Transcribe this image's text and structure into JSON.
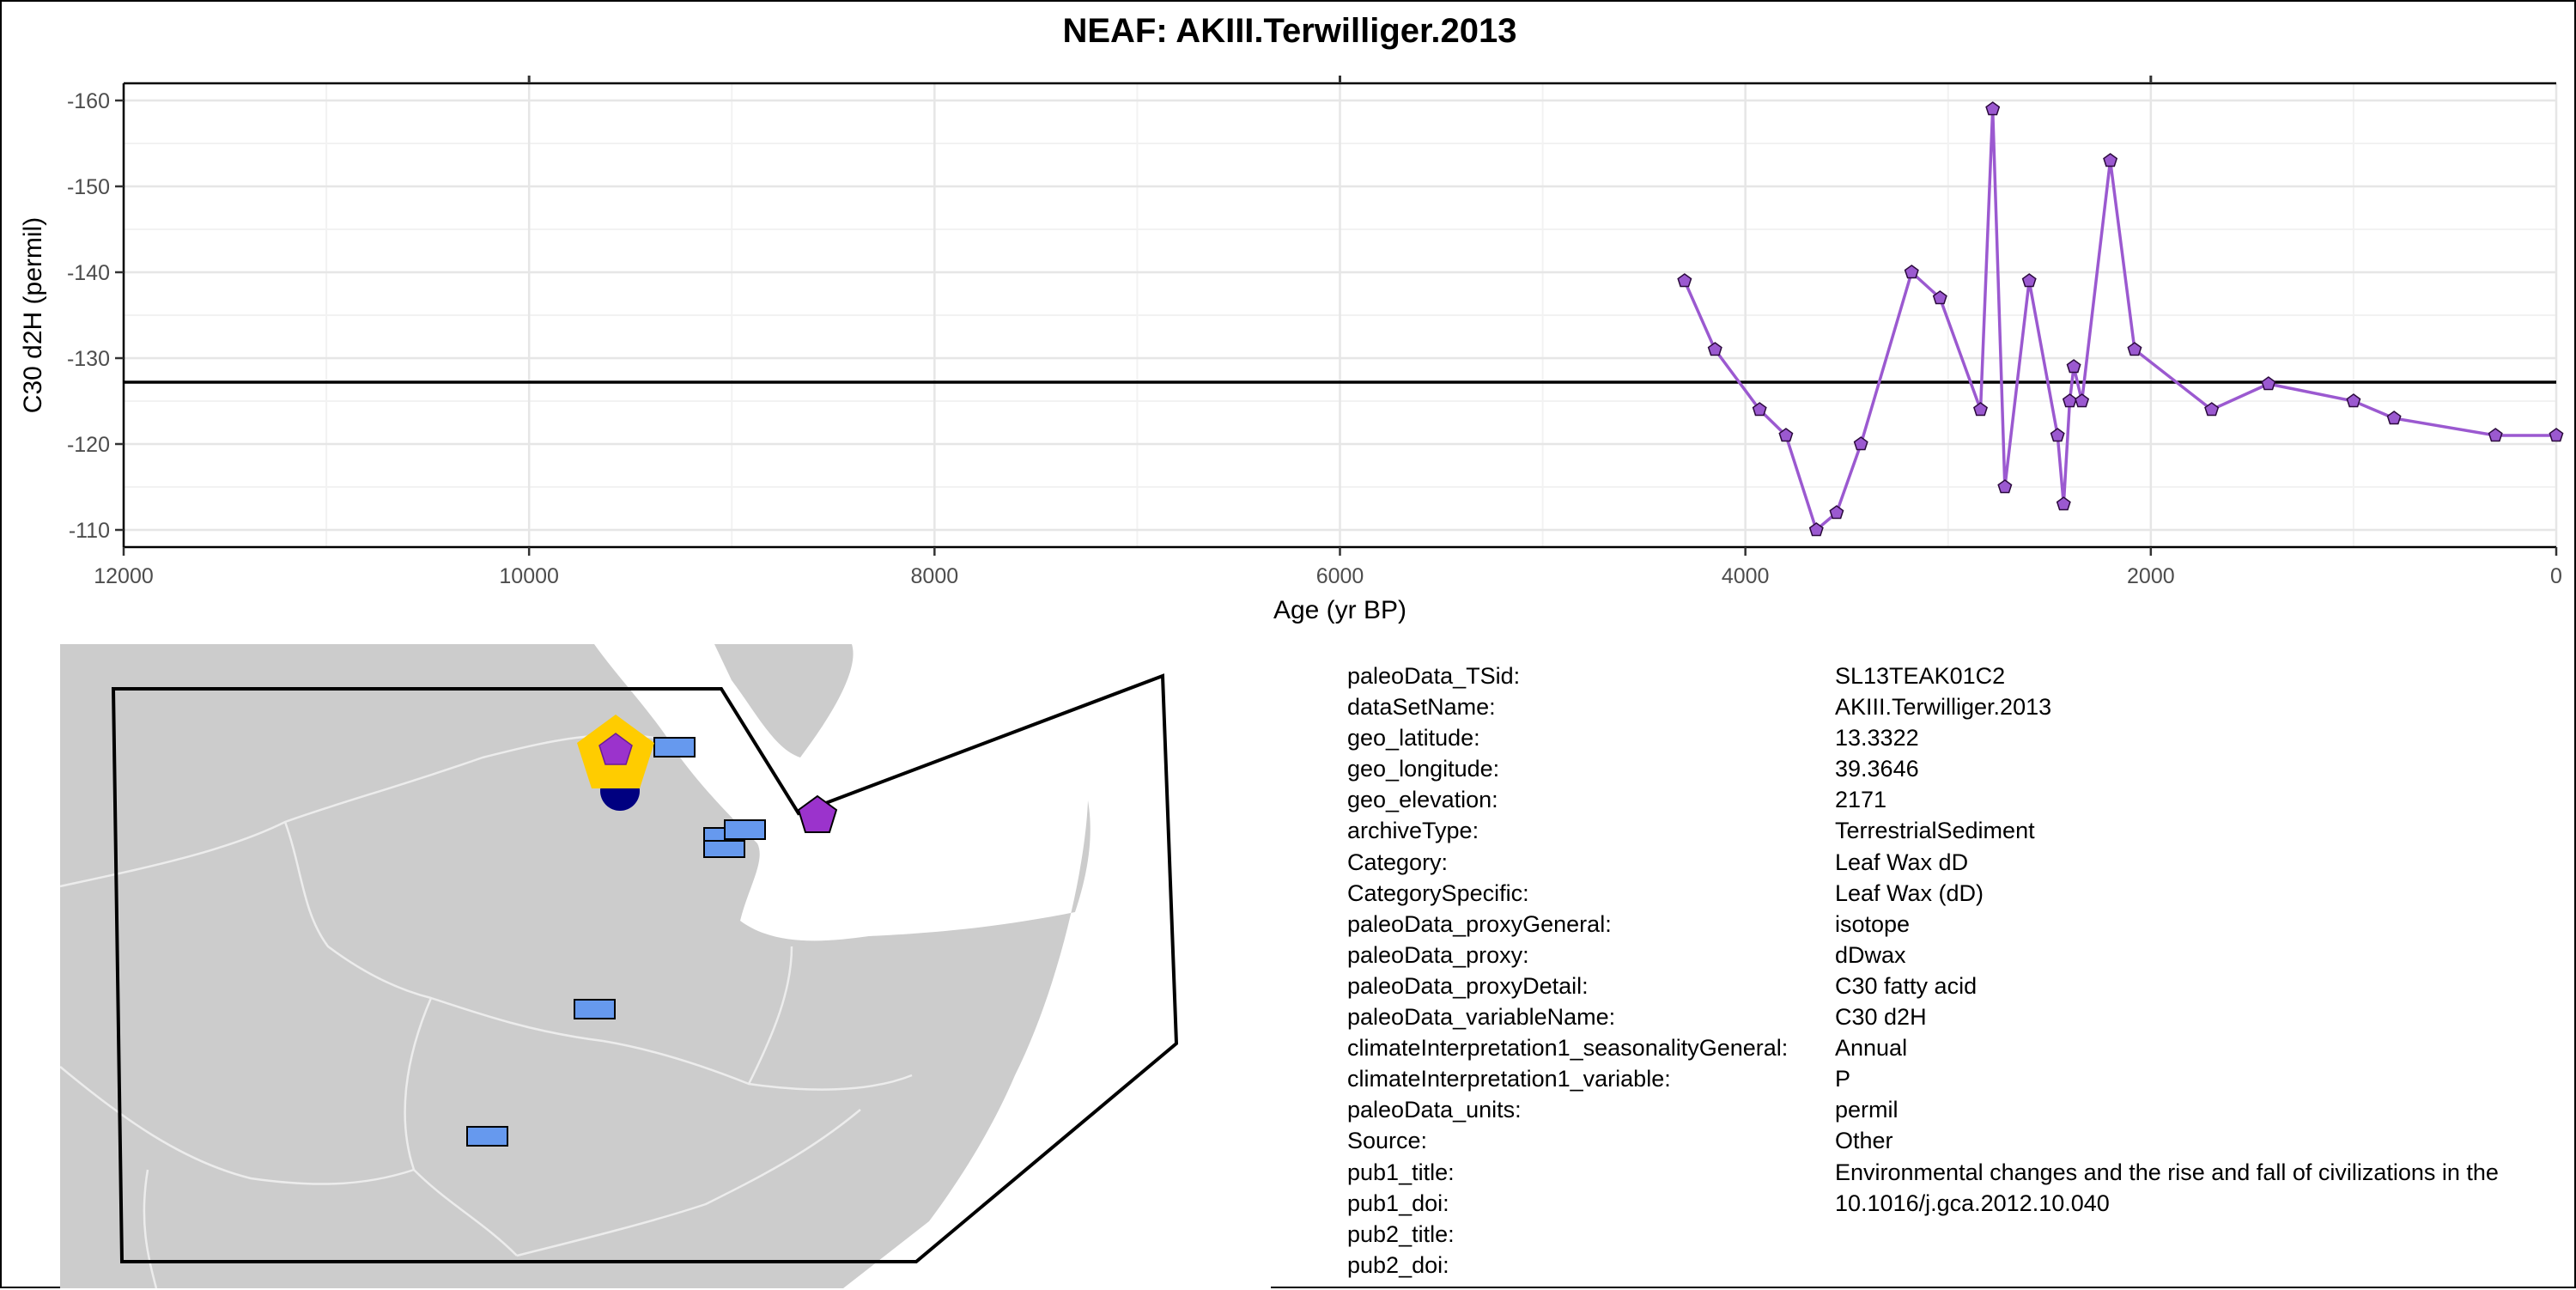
{
  "title": "NEAF: AKIII.Terwilliger.2013",
  "chart_data": {
    "type": "line",
    "title": "NEAF: AKIII.Terwilliger.2013",
    "xlabel": "Age (yr BP)",
    "ylabel": "C30 d2H (permil)",
    "xlim": [
      12000,
      0
    ],
    "ylim": [
      -108,
      -162
    ],
    "x_ticks": [
      12000,
      10000,
      8000,
      6000,
      4000,
      2000,
      0
    ],
    "y_ticks": [
      -160,
      -150,
      -140,
      -130,
      -120,
      -110
    ],
    "reference_line": -127.2,
    "grid": true,
    "series": [
      {
        "color": "#9b59d0",
        "x": [
          4300,
          4150,
          3930,
          3800,
          3650,
          3550,
          3430,
          3180,
          3040,
          2840,
          2780,
          2720,
          2600,
          2460,
          2430,
          2400,
          2380,
          2340,
          2200,
          2080,
          1700,
          1420,
          1000,
          800,
          300,
          0
        ],
        "y": [
          -139,
          -131,
          -124,
          -121,
          -110,
          -112,
          -120,
          -140,
          -137,
          -124,
          -159,
          -115,
          -139,
          -121,
          -113,
          -125,
          -129,
          -125,
          -153,
          -131,
          -124,
          -127,
          -125,
          -123,
          -121,
          -121
        ]
      }
    ]
  },
  "map": {
    "land_color": "#cccccc",
    "site_marker_color": "#9b33cc",
    "highlight_color": "#ffcc00",
    "other_sites_color": "#6699ee",
    "depth_marker_color": "#000080"
  },
  "info": [
    {
      "key": "paleoData_TSid:",
      "value": "SL13TEAK01C2"
    },
    {
      "key": "dataSetName:",
      "value": "AKIII.Terwilliger.2013"
    },
    {
      "key": "geo_latitude:",
      "value": "13.3322"
    },
    {
      "key": "geo_longitude:",
      "value": "39.3646"
    },
    {
      "key": "geo_elevation:",
      "value": "2171"
    },
    {
      "key": "archiveType:",
      "value": "TerrestrialSediment"
    },
    {
      "key": "Category:",
      "value": "Leaf Wax dD"
    },
    {
      "key": "CategorySpecific:",
      "value": "Leaf Wax (dD)"
    },
    {
      "key": "paleoData_proxyGeneral:",
      "value": "isotope"
    },
    {
      "key": "paleoData_proxy:",
      "value": "dDwax"
    },
    {
      "key": "paleoData_proxyDetail:",
      "value": "C30 fatty acid"
    },
    {
      "key": "paleoData_variableName:",
      "value": "C30 d2H"
    },
    {
      "key": "climateInterpretation1_seasonalityGeneral:",
      "value": "Annual"
    },
    {
      "key": "climateInterpretation1_variable:",
      "value": "P"
    },
    {
      "key": "paleoData_units:",
      "value": "permil"
    },
    {
      "key": "Source:",
      "value": "Other"
    },
    {
      "key": "pub1_title:",
      "value": "Environmental changes and the rise and fall of civilizations in the"
    },
    {
      "key": "pub1_doi:",
      "value": "10.1016/j.gca.2012.10.040"
    },
    {
      "key": "pub2_title:",
      "value": ""
    },
    {
      "key": "pub2_doi:",
      "value": ""
    }
  ]
}
